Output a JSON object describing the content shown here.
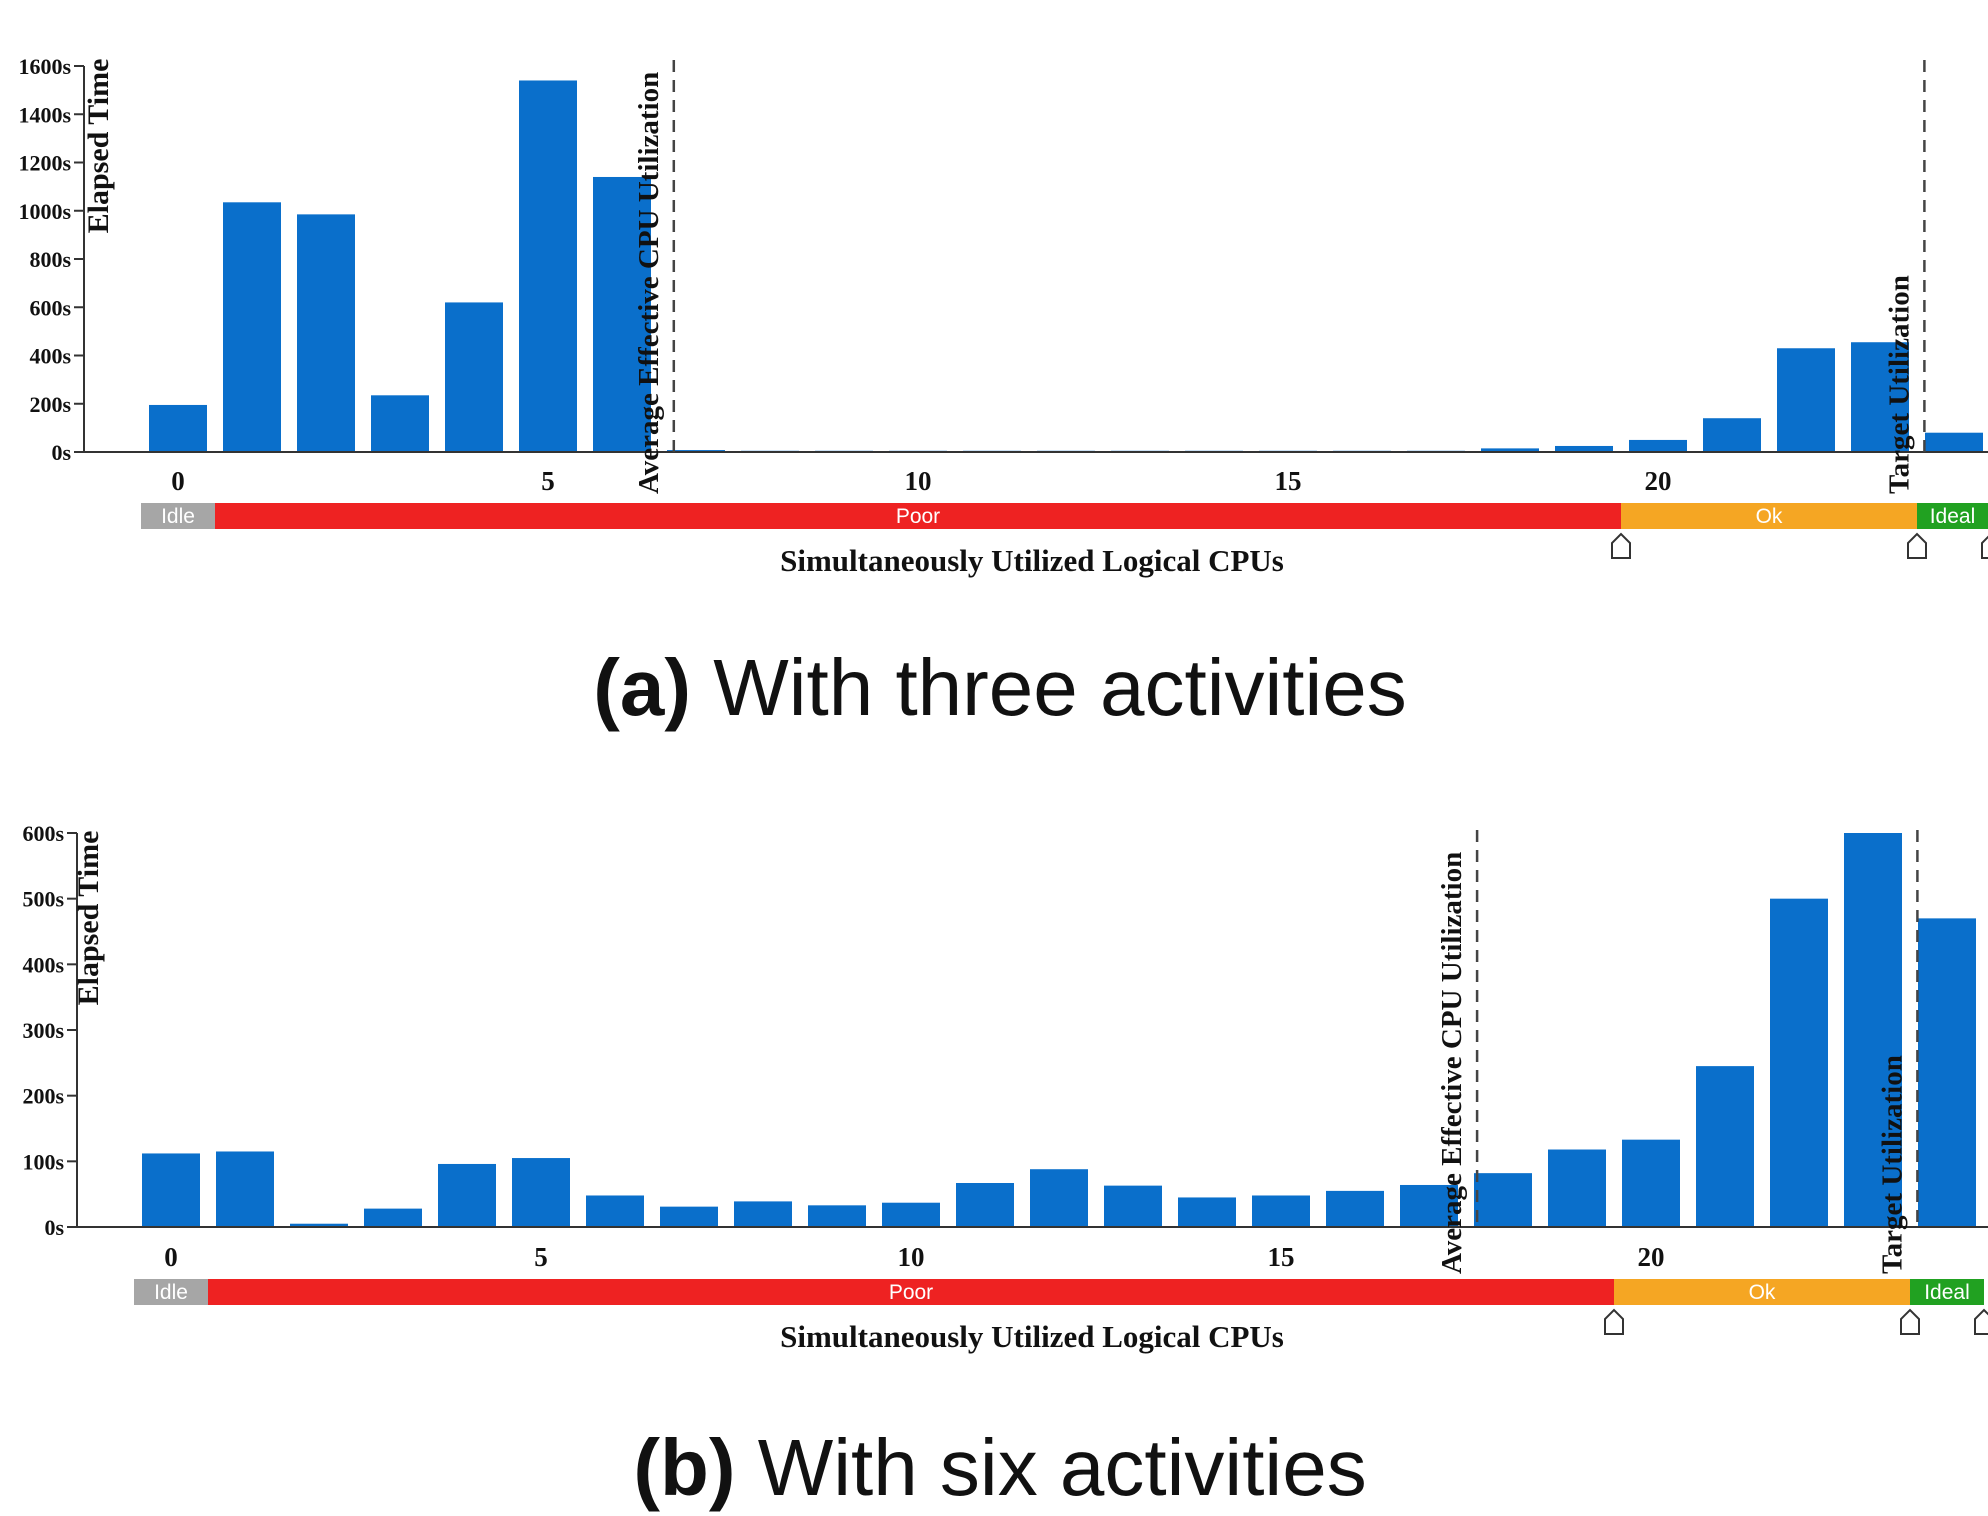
{
  "chart_data": [
    {
      "type": "bar",
      "panel": "a",
      "caption_letter": "(a)",
      "caption_text": "With three activities",
      "ylabel": "Elapsed Time",
      "xlabel": "Simultaneously Utilized Logical CPUs",
      "ylim": [
        0,
        1600
      ],
      "yticks": [
        0,
        200,
        400,
        600,
        800,
        1000,
        1200,
        1400,
        1600
      ],
      "ytick_labels": [
        "0s",
        "200s",
        "400s",
        "600s",
        "800s",
        "1000s",
        "1200s",
        "1400s",
        "1600s"
      ],
      "xticks": [
        0,
        5,
        10,
        15,
        20
      ],
      "xtick_labels": [
        "0",
        "5",
        "10",
        "15",
        "20"
      ],
      "categories": [
        0,
        1,
        2,
        3,
        4,
        5,
        6,
        7,
        8,
        9,
        10,
        11,
        12,
        13,
        14,
        15,
        16,
        17,
        18,
        19,
        20,
        21,
        22,
        23,
        24
      ],
      "values": [
        195,
        1035,
        985,
        235,
        620,
        1540,
        1140,
        8,
        5,
        5,
        5,
        5,
        5,
        5,
        5,
        5,
        5,
        5,
        15,
        25,
        50,
        140,
        430,
        455,
        80
      ],
      "color": "#0a6fcb",
      "markers": [
        {
          "label": "Average Effective CPU Utilization",
          "x": 6.7
        },
        {
          "label": "Target Utilization",
          "x": 23.6
        }
      ],
      "utilization_bands": [
        {
          "label": "Idle",
          "from": -0.5,
          "to": 0.5,
          "color": "#a6a6a6"
        },
        {
          "label": "Poor",
          "from": 0.5,
          "to": 19.5,
          "color": "#ee2222"
        },
        {
          "label": "Ok",
          "from": 19.5,
          "to": 23.5,
          "color": "#f5a623"
        },
        {
          "label": "Ideal",
          "from": 23.5,
          "to": 24.5,
          "color": "#21a121"
        }
      ]
    },
    {
      "type": "bar",
      "panel": "b",
      "caption_letter": "(b)",
      "caption_text": "With six activities",
      "ylabel": "Elapsed Time",
      "xlabel": "Simultaneously Utilized Logical CPUs",
      "ylim": [
        0,
        600
      ],
      "yticks": [
        0,
        100,
        200,
        300,
        400,
        500,
        600
      ],
      "ytick_labels": [
        "0s",
        "100s",
        "200s",
        "300s",
        "400s",
        "500s",
        "600s"
      ],
      "xticks": [
        0,
        5,
        10,
        15,
        20
      ],
      "xtick_labels": [
        "0",
        "5",
        "10",
        "15",
        "20"
      ],
      "categories": [
        0,
        1,
        2,
        3,
        4,
        5,
        6,
        7,
        8,
        9,
        10,
        11,
        12,
        13,
        14,
        15,
        16,
        17,
        18,
        19,
        20,
        21,
        22,
        23,
        24
      ],
      "values": [
        112,
        115,
        5,
        28,
        96,
        105,
        48,
        31,
        39,
        33,
        37,
        67,
        88,
        63,
        45,
        48,
        55,
        64,
        82,
        118,
        133,
        245,
        500,
        600,
        470
      ],
      "color": "#0a6fcb",
      "markers": [
        {
          "label": "Average Effective CPU Utilization",
          "x": 17.65
        },
        {
          "label": "Target Utilization",
          "x": 23.6
        }
      ],
      "utilization_bands": [
        {
          "label": "Idle",
          "from": -0.5,
          "to": 0.5,
          "color": "#a6a6a6"
        },
        {
          "label": "Poor",
          "from": 0.5,
          "to": 19.5,
          "color": "#ee2222"
        },
        {
          "label": "Ok",
          "from": 19.5,
          "to": 23.5,
          "color": "#f5a623"
        },
        {
          "label": "Ideal",
          "from": 23.5,
          "to": 24.5,
          "color": "#21a121"
        }
      ]
    }
  ]
}
